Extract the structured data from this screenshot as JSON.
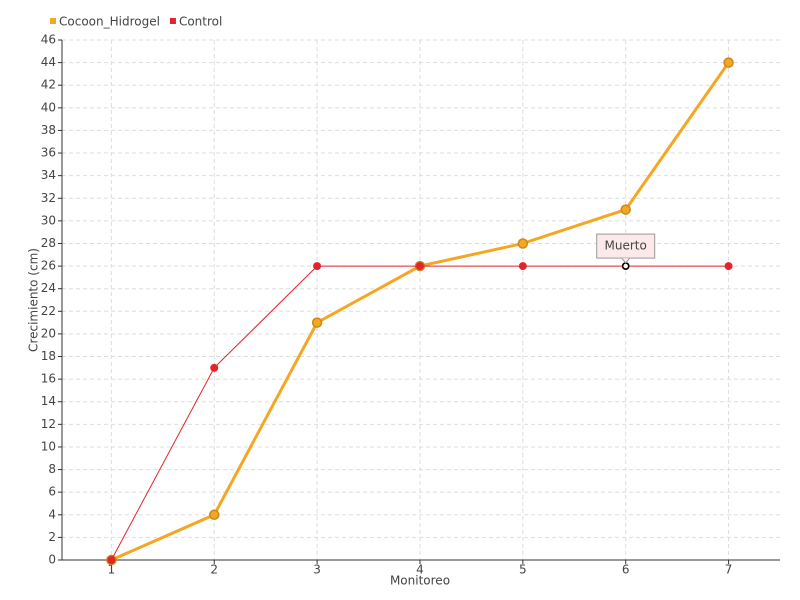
{
  "chart_data": {
    "type": "line",
    "x_label": "Monitoreo",
    "y_label": "Crecimiento (cm)",
    "x": [
      1,
      2,
      3,
      4,
      5,
      6,
      7
    ],
    "series": [
      {
        "name": "Cocoon_Hidrogel",
        "color": "#f5a623",
        "values": [
          0,
          4,
          21,
          26,
          28,
          31,
          44
        ]
      },
      {
        "name": "Control",
        "color": "#e3242b",
        "values": [
          0,
          17,
          26,
          26,
          26,
          26,
          26
        ]
      }
    ],
    "xlim": [
      0.52,
      7.5
    ],
    "xticks": [
      1,
      2,
      3,
      4,
      5,
      6,
      7
    ],
    "ylim": [
      0,
      46
    ],
    "yticks": [
      0,
      2,
      4,
      6,
      8,
      10,
      12,
      14,
      16,
      18,
      20,
      22,
      24,
      26,
      28,
      30,
      32,
      34,
      36,
      38,
      40,
      42,
      44,
      46
    ],
    "grid": true,
    "legend": "top-left",
    "annotations": [
      {
        "text": "Muerto",
        "x": 6,
        "y": 26
      }
    ]
  }
}
